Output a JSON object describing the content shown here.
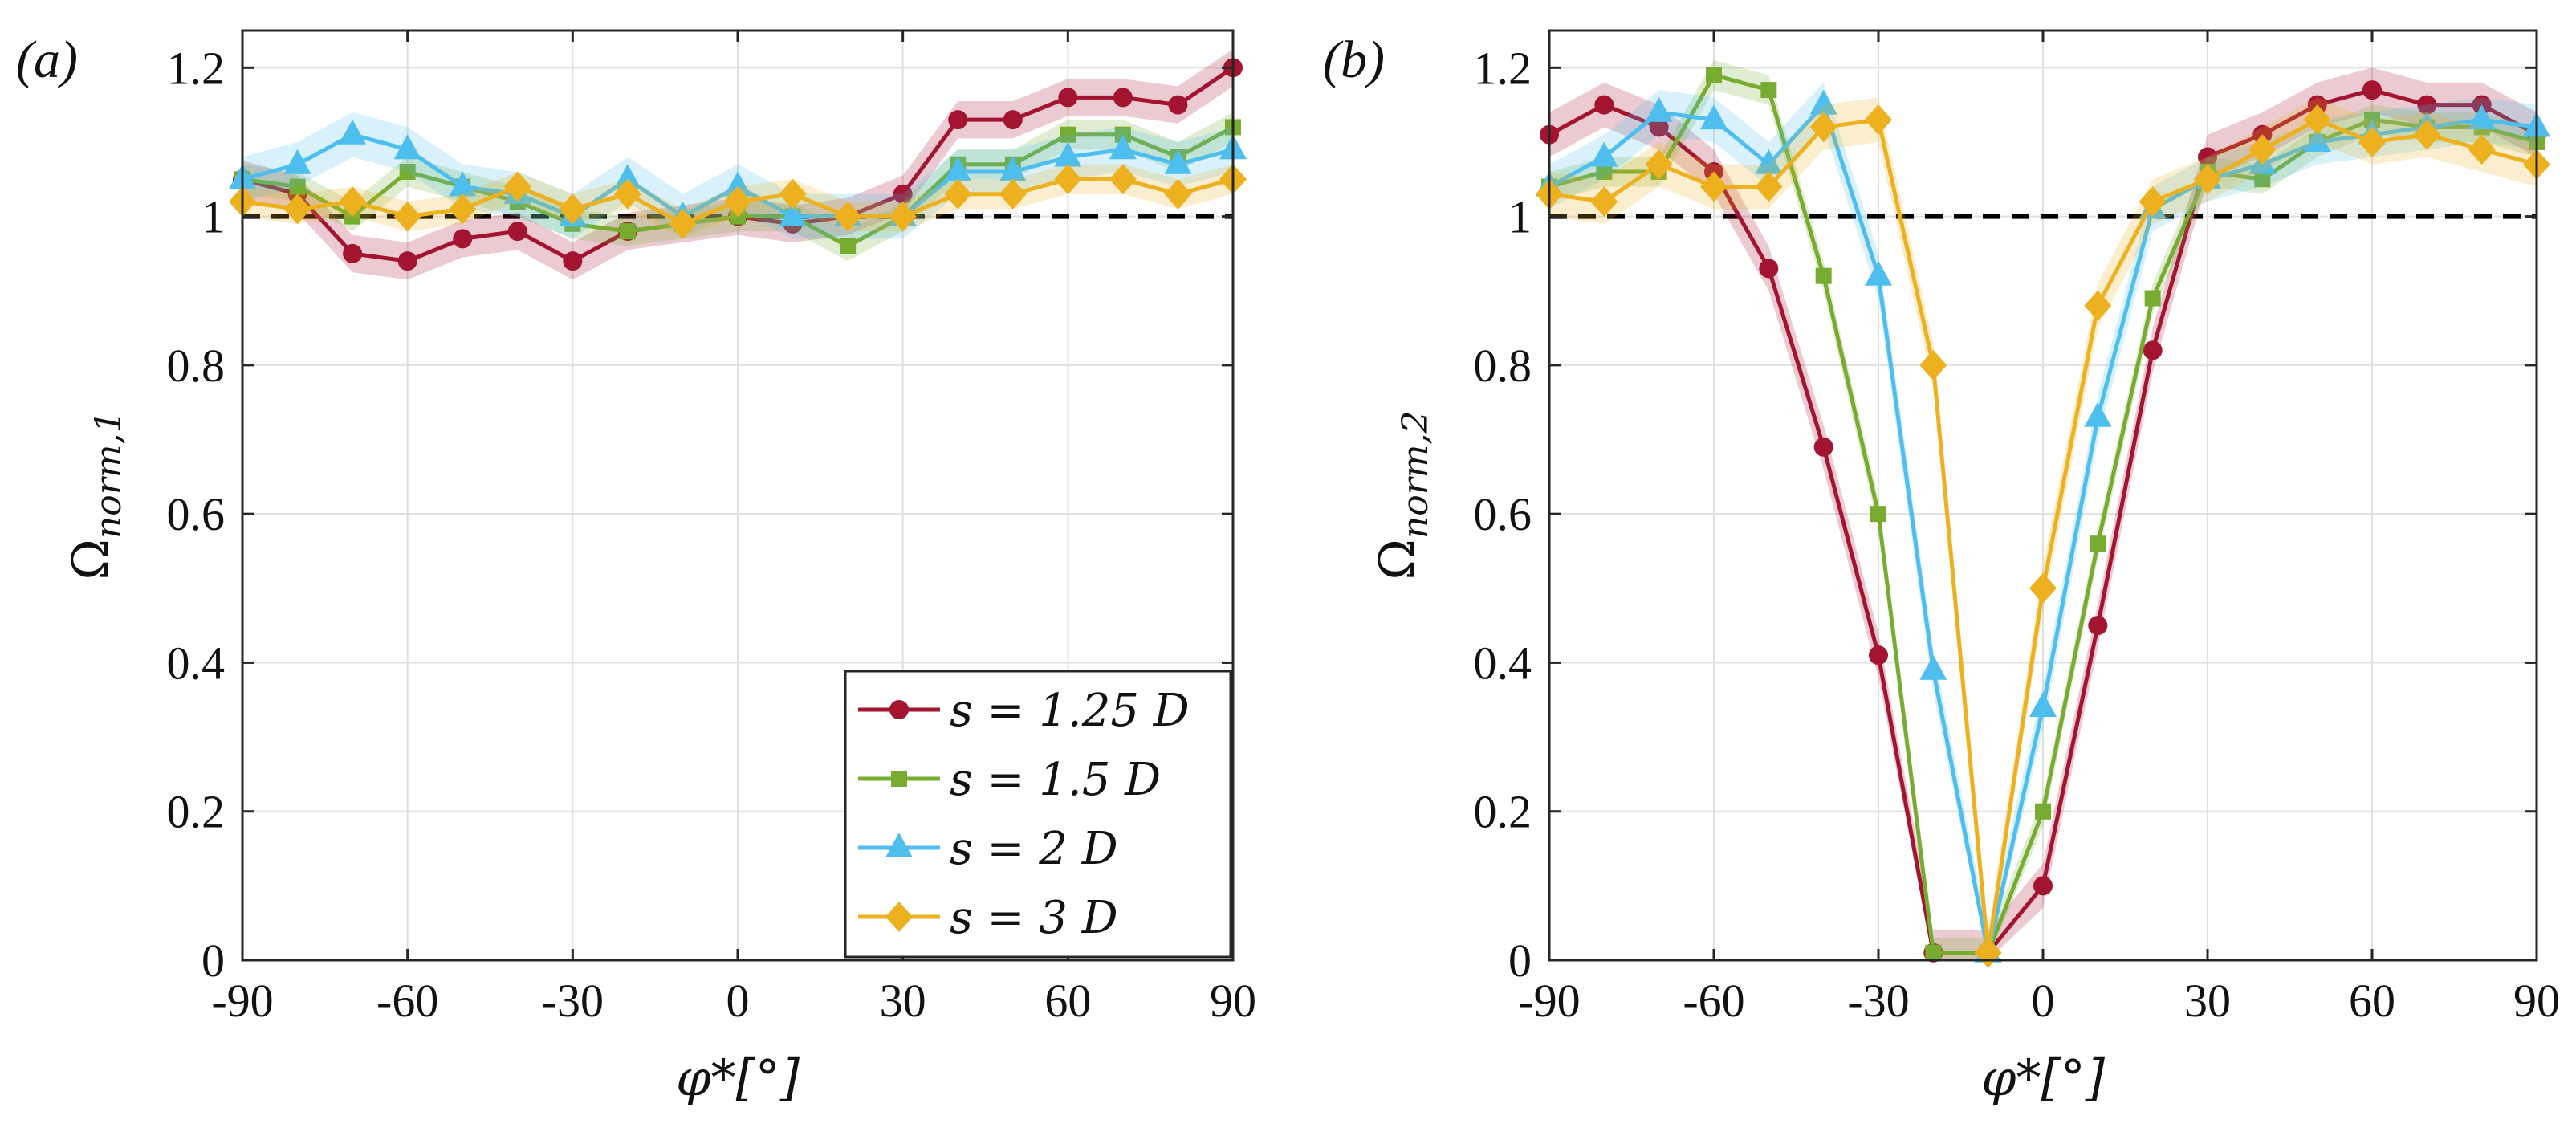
{
  "chart_data": [
    {
      "panel_label": "(a)",
      "type": "line",
      "ylabel": "Ω",
      "ylabel_sub": "norm,1",
      "xlabel": "φ*[°]",
      "xlim": [
        -90,
        90
      ],
      "ylim": [
        0,
        1.25
      ],
      "xticks": [
        -90,
        -60,
        -30,
        0,
        30,
        60,
        90
      ],
      "xtick_labels": [
        "-90",
        "-60",
        "-30",
        "0",
        "30",
        "60",
        "90"
      ],
      "yticks": [
        0,
        0.2,
        0.4,
        0.6,
        0.8,
        1,
        1.2
      ],
      "ytick_labels": [
        "0",
        "0.2",
        "0.4",
        "0.6",
        "0.8",
        "1",
        "1.2"
      ],
      "grid": true,
      "reference_line": 1,
      "legend_position": "bottom-right",
      "legend_entries": [
        "s = 1.25 D",
        "s = 1.5 D",
        "s = 2 D",
        "s = 3 D"
      ],
      "x": [
        -90,
        -80,
        -70,
        -60,
        -50,
        -40,
        -30,
        -20,
        -10,
        0,
        10,
        20,
        30,
        40,
        50,
        60,
        70,
        80,
        90
      ],
      "series": [
        {
          "name": "s = 1.25 D",
          "color": "#a2142f",
          "marker": "circle",
          "band": 0.025,
          "values": [
            1.05,
            1.03,
            0.95,
            0.94,
            0.97,
            0.98,
            0.94,
            0.98,
            0.99,
            1.0,
            0.99,
            1.0,
            1.03,
            1.13,
            1.13,
            1.16,
            1.16,
            1.15,
            1.2
          ]
        },
        {
          "name": "s = 1.5 D",
          "color": "#77ac30",
          "marker": "square",
          "band": 0.02,
          "values": [
            1.05,
            1.04,
            1.0,
            1.06,
            1.04,
            1.02,
            0.99,
            0.98,
            0.99,
            1.0,
            1.0,
            0.96,
            1.0,
            1.07,
            1.07,
            1.11,
            1.11,
            1.08,
            1.12
          ]
        },
        {
          "name": "s = 2 D",
          "color": "#4dbeee",
          "marker": "triangle",
          "band": 0.03,
          "values": [
            1.05,
            1.07,
            1.11,
            1.09,
            1.04,
            1.03,
            1.0,
            1.05,
            1.0,
            1.04,
            1.0,
            1.0,
            1.0,
            1.06,
            1.06,
            1.08,
            1.09,
            1.07,
            1.09
          ]
        },
        {
          "name": "s = 3 D",
          "color": "#edb120",
          "marker": "diamond",
          "band": 0.02,
          "values": [
            1.02,
            1.01,
            1.02,
            1.0,
            1.01,
            1.04,
            1.01,
            1.03,
            0.99,
            1.02,
            1.03,
            1.0,
            1.0,
            1.03,
            1.03,
            1.05,
            1.05,
            1.03,
            1.05
          ]
        }
      ]
    },
    {
      "panel_label": "(b)",
      "type": "line",
      "ylabel": "Ω",
      "ylabel_sub": "norm,2",
      "xlabel": "φ*[°]",
      "xlim": [
        -90,
        90
      ],
      "ylim": [
        0,
        1.25
      ],
      "xticks": [
        -90,
        -60,
        -30,
        0,
        30,
        60,
        90
      ],
      "xtick_labels": [
        "-90",
        "-60",
        "-30",
        "0",
        "30",
        "60",
        "90"
      ],
      "yticks": [
        0,
        0.2,
        0.4,
        0.6,
        0.8,
        1,
        1.2
      ],
      "ytick_labels": [
        "0",
        "0.2",
        "0.4",
        "0.6",
        "0.8",
        "1",
        "1.2"
      ],
      "grid": true,
      "reference_line": 1,
      "x": [
        -90,
        -80,
        -70,
        -60,
        -50,
        -40,
        -30,
        -20,
        -10,
        0,
        10,
        20,
        30,
        40,
        50,
        60,
        70,
        80,
        90
      ],
      "series": [
        {
          "name": "s = 1.25 D",
          "color": "#a2142f",
          "marker": "circle",
          "band": 0.03,
          "values": [
            1.11,
            1.15,
            1.12,
            1.06,
            0.93,
            0.69,
            0.41,
            0.01,
            0.01,
            0.1,
            0.45,
            0.82,
            1.08,
            1.11,
            1.15,
            1.17,
            1.15,
            1.15,
            1.11
          ]
        },
        {
          "name": "s = 1.5 D",
          "color": "#77ac30",
          "marker": "square",
          "band": 0.02,
          "values": [
            1.04,
            1.06,
            1.06,
            1.19,
            1.17,
            0.92,
            0.6,
            0.01,
            0.01,
            0.2,
            0.56,
            0.89,
            1.06,
            1.05,
            1.1,
            1.13,
            1.12,
            1.12,
            1.1
          ]
        },
        {
          "name": "s = 2 D",
          "color": "#4dbeee",
          "marker": "triangle",
          "band": 0.03,
          "values": [
            1.04,
            1.08,
            1.14,
            1.13,
            1.07,
            1.15,
            0.92,
            0.39,
            0.01,
            0.34,
            0.73,
            1.01,
            1.05,
            1.07,
            1.1,
            1.11,
            1.12,
            1.13,
            1.12
          ]
        },
        {
          "name": "s = 3 D",
          "color": "#edb120",
          "marker": "diamond",
          "band": 0.03,
          "values": [
            1.03,
            1.02,
            1.07,
            1.04,
            1.04,
            1.12,
            1.13,
            0.8,
            0.01,
            0.5,
            0.88,
            1.02,
            1.05,
            1.09,
            1.13,
            1.1,
            1.11,
            1.09,
            1.07
          ]
        }
      ]
    }
  ]
}
